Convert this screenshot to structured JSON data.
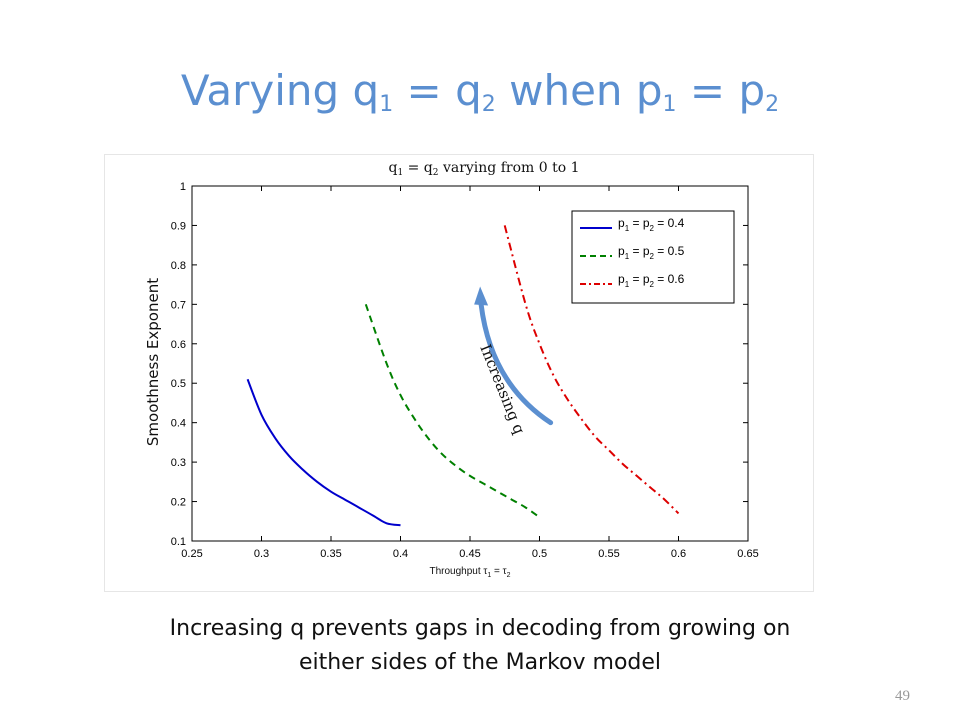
{
  "slide": {
    "title_parts": [
      "Varying q",
      "1",
      " = q",
      "2",
      " when p",
      "1",
      " = p",
      "2"
    ],
    "caption_line1": "Increasing q prevents gaps in decoding from growing on",
    "caption_line2": "either sides of the Markov model",
    "page_number": "49"
  },
  "chart_data": {
    "type": "line",
    "title_parts": [
      "q",
      "1",
      " = q",
      "2",
      " varying from 0 to 1"
    ],
    "xlabel_parts": [
      "Throughput τ",
      "1",
      " = τ",
      "2"
    ],
    "ylabel": "Smoothness Exponent",
    "xlim": [
      0.25,
      0.65
    ],
    "ylim": [
      0.1,
      1
    ],
    "xticks": [
      "0.25",
      "0.3",
      "0.35",
      "0.4",
      "0.45",
      "0.5",
      "0.55",
      "0.6",
      "0.65"
    ],
    "yticks": [
      "0.1",
      "0.2",
      "0.3",
      "0.4",
      "0.5",
      "0.6",
      "0.7",
      "0.8",
      "0.9",
      "1"
    ],
    "grid": false,
    "legend_position": "top-right",
    "series": [
      {
        "name_parts": [
          "p",
          "1",
          " = p",
          "2",
          " = 0.4"
        ],
        "color": "#0000cc",
        "style": "solid",
        "x": [
          0.29,
          0.3,
          0.31,
          0.32,
          0.33,
          0.34,
          0.35,
          0.36,
          0.37,
          0.38,
          0.39,
          0.4
        ],
        "y": [
          0.51,
          0.42,
          0.36,
          0.315,
          0.28,
          0.25,
          0.225,
          0.205,
          0.185,
          0.165,
          0.145,
          0.14
        ]
      },
      {
        "name_parts": [
          "p",
          "1",
          " = p",
          "2",
          " = 0.5"
        ],
        "color": "#008000",
        "style": "dashed",
        "x": [
          0.375,
          0.39,
          0.4,
          0.41,
          0.42,
          0.43,
          0.44,
          0.45,
          0.46,
          0.47,
          0.48,
          0.49,
          0.5
        ],
        "y": [
          0.7,
          0.55,
          0.47,
          0.41,
          0.36,
          0.32,
          0.29,
          0.265,
          0.245,
          0.225,
          0.205,
          0.185,
          0.16
        ]
      },
      {
        "name_parts": [
          "p",
          "1",
          " = p",
          "2",
          " = 0.6"
        ],
        "color": "#dd0000",
        "style": "dashdot",
        "x": [
          0.475,
          0.49,
          0.5,
          0.51,
          0.52,
          0.53,
          0.54,
          0.55,
          0.56,
          0.57,
          0.58,
          0.59,
          0.6
        ],
        "y": [
          0.9,
          0.7,
          0.6,
          0.52,
          0.46,
          0.41,
          0.365,
          0.33,
          0.295,
          0.265,
          0.235,
          0.205,
          0.17
        ]
      }
    ],
    "annotation": {
      "text": "Increasing q",
      "arrow_color": "#5b8fd0",
      "arrow_from": [
        0.508,
        0.4
      ],
      "arrow_via": [
        0.465,
        0.5
      ],
      "arrow_to": [
        0.458,
        0.73
      ],
      "text_anchor": [
        0.47,
        0.48
      ],
      "text_rotation_deg": 68
    }
  }
}
